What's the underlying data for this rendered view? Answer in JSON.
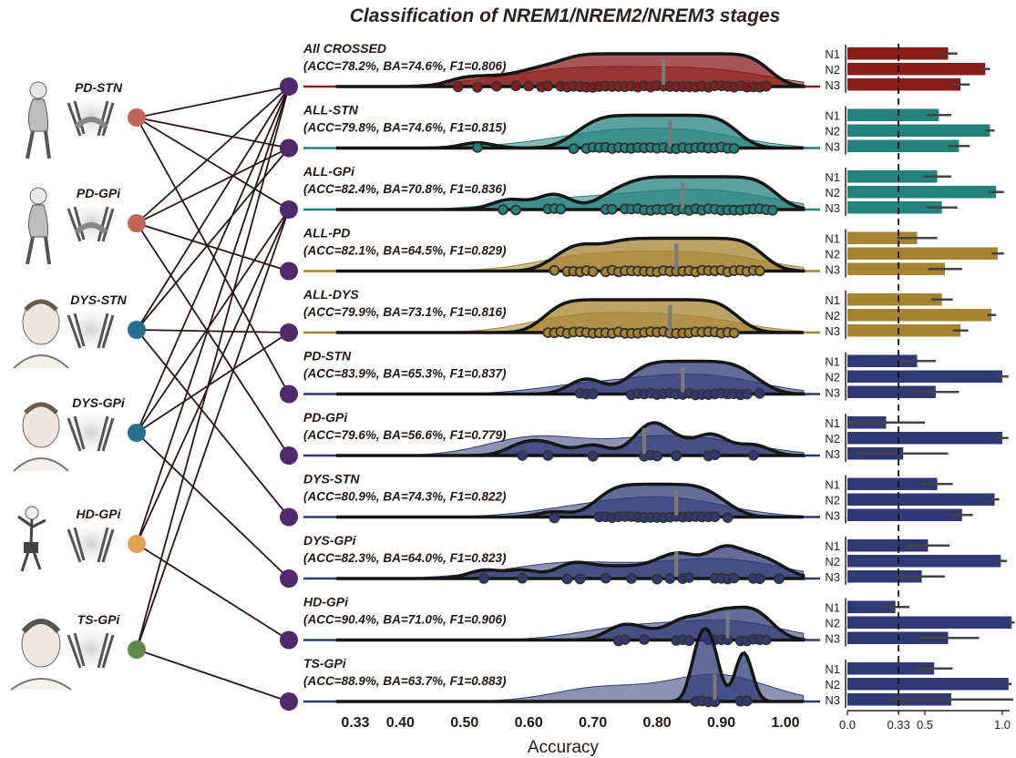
{
  "title": "Classification of NREM1/NREM2/NREM3 stages",
  "xlabel": "Accuracy",
  "xticks": [
    "0.33",
    "0.40",
    "0.50",
    "0.60",
    "0.70",
    "0.80",
    "0.90",
    "1.00"
  ],
  "bar_xticks": [
    "0.0",
    "0.33",
    "0.5",
    "1.0"
  ],
  "stage_labels": [
    "N1",
    "N2",
    "N3"
  ],
  "cohorts": [
    {
      "label": "PD-STN",
      "color": "#c0655a",
      "icon": "elderly-parkinson-patient-icon",
      "targets": [
        0,
        1,
        2,
        5
      ]
    },
    {
      "label": "PD-GPi",
      "color": "#c0655a",
      "icon": "elderly-parkinson-patient-icon",
      "targets": [
        0,
        1,
        3,
        6
      ]
    },
    {
      "label": "DYS-STN",
      "color": "#2b6d8e",
      "icon": "dystonia-patient-icon",
      "targets": [
        0,
        1,
        4,
        7
      ]
    },
    {
      "label": "DYS-GPi",
      "color": "#2b6d8e",
      "icon": "dystonia-patient-icon",
      "targets": [
        0,
        2,
        4,
        8
      ]
    },
    {
      "label": "HD-GPi",
      "color": "#e1a452",
      "icon": "huntington-patient-icon",
      "targets": [
        0,
        2,
        9
      ]
    },
    {
      "label": "TS-GPi",
      "color": "#5e8a4b",
      "icon": "tourette-patient-icon",
      "targets": [
        0,
        2,
        10
      ]
    }
  ],
  "chart_data": {
    "type": "ridgeline",
    "xlim": [
      0.33,
      1.0
    ],
    "rows": [
      {
        "name": "All CROSSED",
        "metrics": "(ACC=78.2%, BA=74.6%, F1=0.806)",
        "color": "#8b1c1c",
        "mean": 0.81,
        "points": [
          0.49,
          0.52,
          0.55,
          0.58,
          0.6,
          0.62,
          0.63,
          0.65,
          0.66,
          0.67,
          0.68,
          0.69,
          0.7,
          0.71,
          0.72,
          0.73,
          0.74,
          0.75,
          0.76,
          0.77,
          0.78,
          0.79,
          0.8,
          0.81,
          0.82,
          0.83,
          0.84,
          0.85,
          0.86,
          0.87,
          0.88,
          0.89,
          0.9,
          0.91,
          0.92,
          0.93,
          0.94,
          0.95,
          0.96,
          0.97
        ],
        "bars": [
          {
            "stage": "N1",
            "value": 0.65,
            "err": 0.06
          },
          {
            "stage": "N2",
            "value": 0.89,
            "err": 0.03
          },
          {
            "stage": "N3",
            "value": 0.73,
            "err": 0.06
          }
        ]
      },
      {
        "name": "ALL-STN",
        "metrics": "(ACC=79.8%, BA=74.6%, F1=0.815)",
        "color": "#24827c",
        "mean": 0.82,
        "points": [
          0.52,
          0.67,
          0.69,
          0.7,
          0.71,
          0.72,
          0.73,
          0.74,
          0.75,
          0.76,
          0.77,
          0.78,
          0.79,
          0.8,
          0.81,
          0.82,
          0.83,
          0.84,
          0.85,
          0.86,
          0.87,
          0.88,
          0.89,
          0.9,
          0.91,
          0.92
        ],
        "bars": [
          {
            "stage": "N1",
            "value": 0.59,
            "err": 0.08
          },
          {
            "stage": "N2",
            "value": 0.92,
            "err": 0.03
          },
          {
            "stage": "N3",
            "value": 0.72,
            "err": 0.07
          }
        ]
      },
      {
        "name": "ALL-GPi",
        "metrics": "(ACC=82.4%, BA=70.8%, F1=0.836)",
        "color": "#24827c",
        "mean": 0.84,
        "points": [
          0.56,
          0.58,
          0.63,
          0.64,
          0.65,
          0.72,
          0.73,
          0.75,
          0.76,
          0.77,
          0.78,
          0.79,
          0.8,
          0.81,
          0.82,
          0.83,
          0.84,
          0.85,
          0.86,
          0.87,
          0.88,
          0.89,
          0.9,
          0.91,
          0.92,
          0.93,
          0.94,
          0.95,
          0.96,
          0.97,
          0.98
        ],
        "bars": [
          {
            "stage": "N1",
            "value": 0.58,
            "err": 0.09
          },
          {
            "stage": "N2",
            "value": 0.96,
            "err": 0.05
          },
          {
            "stage": "N3",
            "value": 0.61,
            "err": 0.1
          }
        ]
      },
      {
        "name": "ALL-PD",
        "metrics": "(ACC=82.1%, BA=64.5%, F1=0.829)",
        "color": "#a58330",
        "mean": 0.83,
        "points": [
          0.64,
          0.66,
          0.67,
          0.68,
          0.69,
          0.7,
          0.72,
          0.73,
          0.74,
          0.75,
          0.76,
          0.77,
          0.78,
          0.79,
          0.8,
          0.81,
          0.82,
          0.83,
          0.84,
          0.85,
          0.86,
          0.87,
          0.88,
          0.89,
          0.9,
          0.91,
          0.92,
          0.93,
          0.94,
          0.95,
          0.96
        ],
        "bars": [
          {
            "stage": "N1",
            "value": 0.45,
            "err": 0.13
          },
          {
            "stage": "N2",
            "value": 0.97,
            "err": 0.04
          },
          {
            "stage": "N3",
            "value": 0.63,
            "err": 0.11
          }
        ]
      },
      {
        "name": "ALL-DYS",
        "metrics": "(ACC=79.9%, BA=73.1%, F1=0.816)",
        "color": "#a58330",
        "mean": 0.82,
        "points": [
          0.63,
          0.64,
          0.65,
          0.66,
          0.67,
          0.68,
          0.69,
          0.7,
          0.71,
          0.72,
          0.73,
          0.74,
          0.75,
          0.76,
          0.77,
          0.78,
          0.79,
          0.8,
          0.81,
          0.82,
          0.83,
          0.84,
          0.85,
          0.86,
          0.87,
          0.88,
          0.89,
          0.9,
          0.91,
          0.92
        ],
        "bars": [
          {
            "stage": "N1",
            "value": 0.61,
            "err": 0.07
          },
          {
            "stage": "N2",
            "value": 0.93,
            "err": 0.03
          },
          {
            "stage": "N3",
            "value": 0.73,
            "err": 0.05
          }
        ]
      },
      {
        "name": "PD-STN",
        "metrics": "(ACC=83.9%, BA=65.3%, F1=0.837)",
        "color": "#2f3a75",
        "mean": 0.84,
        "points": [
          0.68,
          0.69,
          0.7,
          0.76,
          0.77,
          0.78,
          0.79,
          0.8,
          0.81,
          0.82,
          0.83,
          0.84,
          0.85,
          0.86,
          0.87,
          0.88,
          0.89,
          0.9,
          0.91,
          0.92,
          0.93,
          0.94,
          0.96
        ],
        "bars": [
          {
            "stage": "N1",
            "value": 0.45,
            "err": 0.12
          },
          {
            "stage": "N2",
            "value": 1.0,
            "err": 0.04
          },
          {
            "stage": "N3",
            "value": 0.57,
            "err": 0.15
          }
        ]
      },
      {
        "name": "PD-GPi",
        "metrics": "(ACC=79.6%, BA=56.6%, F1=0.779)",
        "color": "#2f3a75",
        "mean": 0.78,
        "points": [
          0.59,
          0.63,
          0.7,
          0.78,
          0.79,
          0.8,
          0.83,
          0.88,
          0.89,
          0.95
        ],
        "bars": [
          {
            "stage": "N1",
            "value": 0.25,
            "err": 0.25
          },
          {
            "stage": "N2",
            "value": 1.0,
            "err": 0.04
          },
          {
            "stage": "N3",
            "value": 0.36,
            "err": 0.29
          }
        ]
      },
      {
        "name": "DYS-STN",
        "metrics": "(ACC=80.9%, BA=74.3%, F1=0.822)",
        "color": "#2f3a75",
        "mean": 0.83,
        "points": [
          0.64,
          0.71,
          0.72,
          0.73,
          0.74,
          0.75,
          0.76,
          0.77,
          0.78,
          0.79,
          0.8,
          0.81,
          0.82,
          0.83,
          0.84,
          0.85,
          0.86,
          0.87,
          0.88,
          0.89,
          0.91
        ],
        "bars": [
          {
            "stage": "N1",
            "value": 0.58,
            "err": 0.1
          },
          {
            "stage": "N2",
            "value": 0.95,
            "err": 0.03
          },
          {
            "stage": "N3",
            "value": 0.74,
            "err": 0.07
          }
        ]
      },
      {
        "name": "DYS-GPi",
        "metrics": "(ACC=82.3%, BA=64.0%, F1=0.823)",
        "color": "#2f3a75",
        "mean": 0.83,
        "points": [
          0.53,
          0.59,
          0.66,
          0.68,
          0.72,
          0.76,
          0.8,
          0.82,
          0.84,
          0.85,
          0.89,
          0.9,
          0.91,
          0.92,
          0.95,
          0.96,
          0.99
        ],
        "bars": [
          {
            "stage": "N1",
            "value": 0.52,
            "err": 0.14
          },
          {
            "stage": "N2",
            "value": 0.99,
            "err": 0.04
          },
          {
            "stage": "N3",
            "value": 0.48,
            "err": 0.15
          }
        ]
      },
      {
        "name": "HD-GPi",
        "metrics": "(ACC=90.4%, BA=71.0%, F1=0.906)",
        "color": "#2f3a75",
        "mean": 0.91,
        "points": [
          0.74,
          0.75,
          0.78,
          0.83,
          0.84,
          0.85,
          0.88,
          0.89,
          0.9,
          0.91,
          0.93,
          0.94,
          0.95,
          0.96,
          0.97
        ],
        "bars": [
          {
            "stage": "N1",
            "value": 0.31,
            "err": 0.09
          },
          {
            "stage": "N2",
            "value": 1.06,
            "err": 0.02
          },
          {
            "stage": "N3",
            "value": 0.65,
            "err": 0.2
          }
        ]
      },
      {
        "name": "TS-GPi",
        "metrics": "(ACC=88.9%, BA=63.7%, F1=0.883)",
        "color": "#2f3a75",
        "mean": 0.89,
        "points": [
          0.86,
          0.87,
          0.88,
          0.89,
          0.93,
          0.94
        ],
        "bars": [
          {
            "stage": "N1",
            "value": 0.56,
            "err": 0.12
          },
          {
            "stage": "N2",
            "value": 1.04,
            "err": 0.02
          },
          {
            "stage": "N3",
            "value": 0.67,
            "err": 0.4
          }
        ]
      }
    ]
  }
}
